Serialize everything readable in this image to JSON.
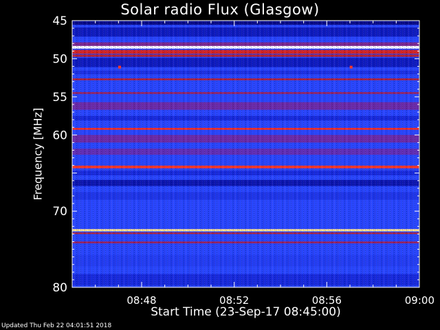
{
  "chart_data": {
    "type": "heatmap",
    "title": "Solar radio Flux (Glasgow)",
    "ylabel": "Frequency [MHz]",
    "xlabel": "Start Time (23-Sep-17 08:45:00)",
    "ylim": [
      45,
      80
    ],
    "y_inverted": true,
    "y_ticks": [
      45,
      50,
      55,
      60,
      65,
      70,
      80
    ],
    "y_tick_labels": [
      "45",
      "50",
      "55",
      "60",
      "",
      "70",
      "80"
    ],
    "x_ticks": [
      "08:48",
      "08:52",
      "08:56",
      "09:00"
    ],
    "x_tick_minutes": [
      3,
      7,
      11,
      15
    ],
    "xlim_minutes": [
      0,
      15
    ],
    "colormap": [
      "#000060",
      "#1020d0",
      "#2848ff",
      "#7028a0",
      "#c02020",
      "#ff3020",
      "#ffe080",
      "#ffffff"
    ],
    "background_level": 0.28,
    "bands": [
      {
        "freq": 45.3,
        "width": 0.5,
        "level": 0.05
      },
      {
        "freq": 46.5,
        "width": 1.2,
        "level": 0.12
      },
      {
        "freq": 48.1,
        "width": 0.5,
        "level": 0.45
      },
      {
        "freq": 48.5,
        "width": 0.35,
        "level": 1.0
      },
      {
        "freq": 49.1,
        "width": 0.5,
        "level": 0.62
      },
      {
        "freq": 49.6,
        "width": 0.3,
        "level": 0.55
      },
      {
        "freq": 50.5,
        "width": 1.2,
        "level": 0.12
      },
      {
        "freq": 51.8,
        "width": 0.5,
        "level": 0.2
      },
      {
        "freq": 52.7,
        "width": 0.25,
        "level": 0.54
      },
      {
        "freq": 54.5,
        "width": 0.25,
        "level": 0.5
      },
      {
        "freq": 56.2,
        "width": 1.0,
        "level": 0.42
      },
      {
        "freq": 57.8,
        "width": 0.6,
        "level": 0.18
      },
      {
        "freq": 59.2,
        "width": 0.25,
        "level": 0.7
      },
      {
        "freq": 60.5,
        "width": 1.0,
        "level": 0.42
      },
      {
        "freq": 62.2,
        "width": 0.8,
        "level": 0.4
      },
      {
        "freq": 64.2,
        "width": 0.35,
        "level": 0.72
      },
      {
        "freq": 65.0,
        "width": 0.6,
        "level": 0.18
      },
      {
        "freq": 66.3,
        "width": 0.8,
        "level": 0.1
      },
      {
        "freq": 68.0,
        "width": 1.0,
        "level": 0.22
      },
      {
        "freq": 72.5,
        "width": 0.3,
        "level": 0.88
      },
      {
        "freq": 72.9,
        "width": 0.2,
        "level": 0.55
      },
      {
        "freq": 74.1,
        "width": 0.25,
        "level": 0.5
      },
      {
        "freq": 76.5,
        "width": 1.5,
        "level": 0.25
      },
      {
        "freq": 79.0,
        "width": 1.5,
        "level": 0.18
      }
    ],
    "spots": [
      {
        "minute": 2.05,
        "freq": 51.1,
        "level": 0.72
      },
      {
        "minute": 12.05,
        "freq": 51.1,
        "level": 0.72
      }
    ]
  },
  "footer": {
    "updated": "Updated Thu Feb 22 04:01:51 2018"
  }
}
